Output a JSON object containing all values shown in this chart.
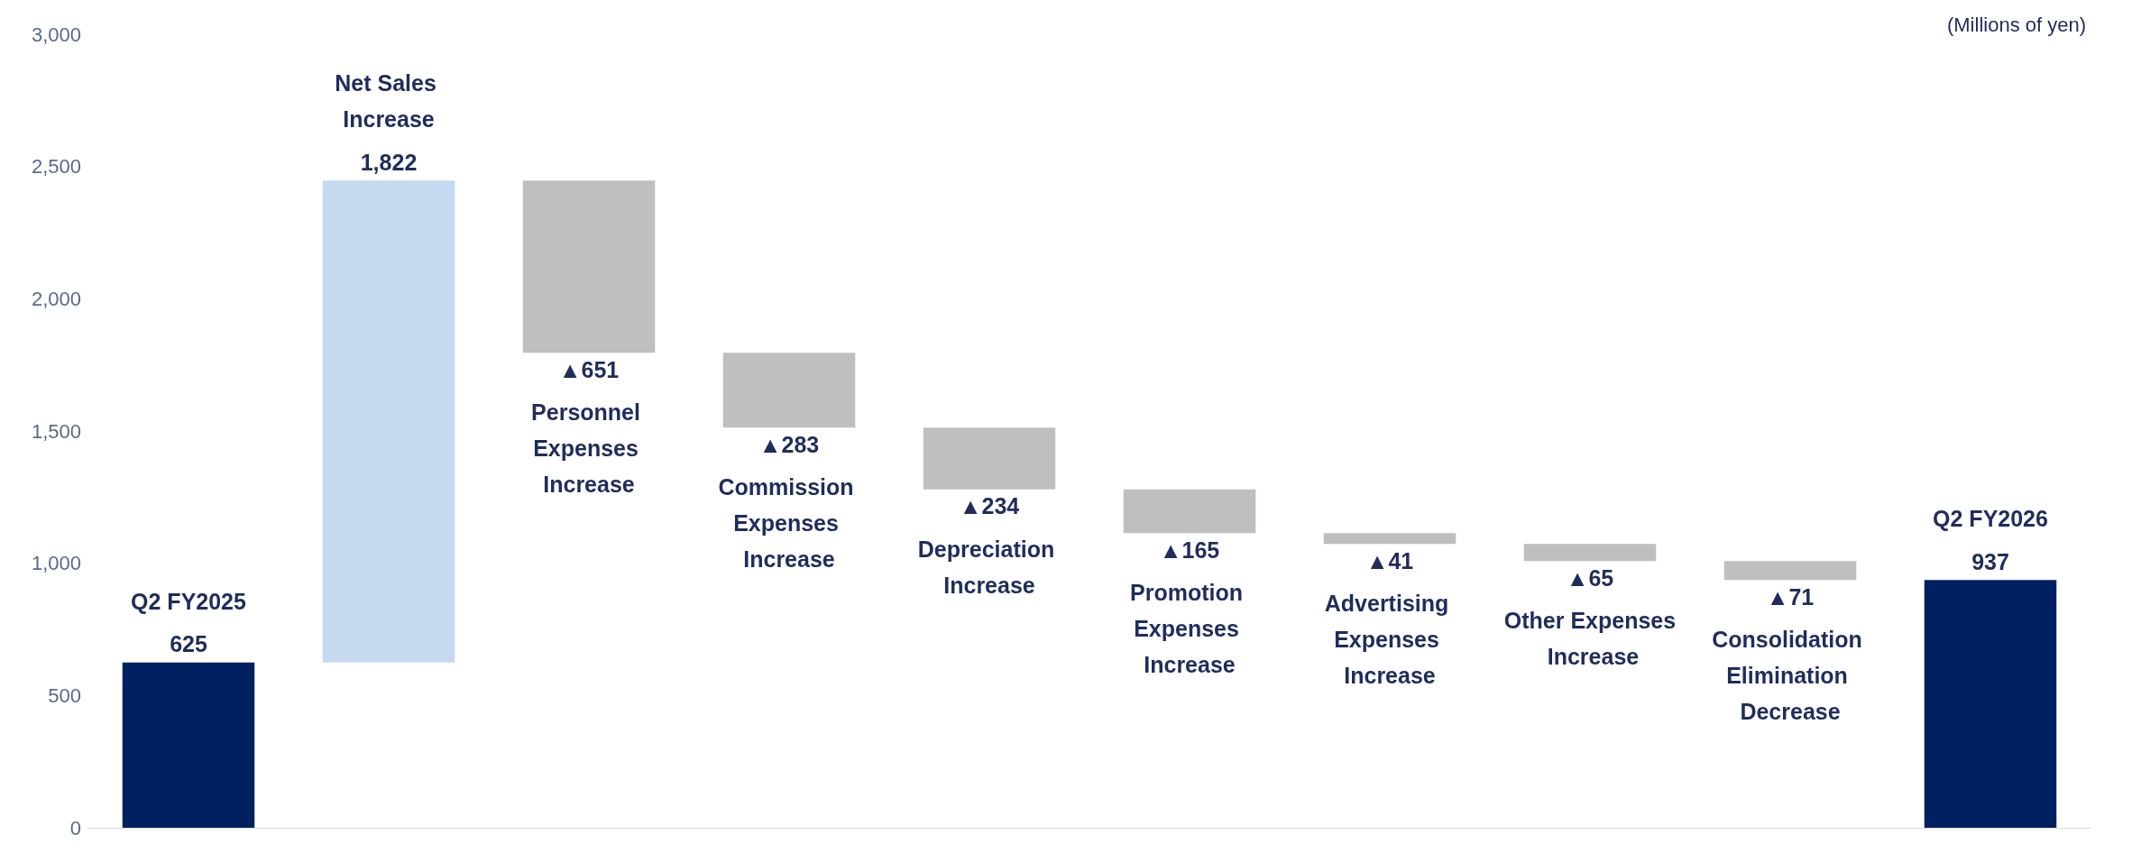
{
  "chart_data": {
    "type": "bar",
    "ylabel": "(Millions of yen)",
    "categories": [
      "Q2 FY2025",
      "Net Sales Increase",
      "Personnel Expenses Increase",
      "Commission Expenses Increase",
      "Depreciation Increase",
      "Promotion Expenses Increase",
      "Advertising Expenses Increase",
      "Other Expenses Increase",
      "Consolidation Elimination Decrease",
      "Q2 FY2026"
    ],
    "values": [
      625,
      1822,
      -651,
      -283,
      -234,
      -165,
      -41,
      -65,
      -71,
      937
    ],
    "base": [
      0,
      625,
      2447,
      1796,
      1513,
      1279,
      1114,
      1073,
      1008,
      0
    ],
    "value_labels": [
      "625",
      "1,822",
      "▲651",
      "▲283",
      "▲234",
      "▲165",
      "▲41",
      "▲65",
      "▲71",
      "937"
    ],
    "colors": [
      "#002060",
      "#c5d9f1",
      "#bfbfbf",
      "#bfbfbf",
      "#bfbfbf",
      "#bfbfbf",
      "#bfbfbf",
      "#bfbfbf",
      "#bfbfbf",
      "#002060"
    ],
    "ylim": [
      0,
      3000
    ],
    "yticks": [
      0,
      500,
      {
        "value": 1000,
        "label": "1,000"
      },
      {
        "value": 1500,
        "label": "1,500"
      },
      {
        "value": 2000,
        "label": "2,000"
      },
      {
        "value": 2500,
        "label": "2,500"
      },
      {
        "value": 3000,
        "label": "3,000"
      }
    ],
    "grid": false
  }
}
